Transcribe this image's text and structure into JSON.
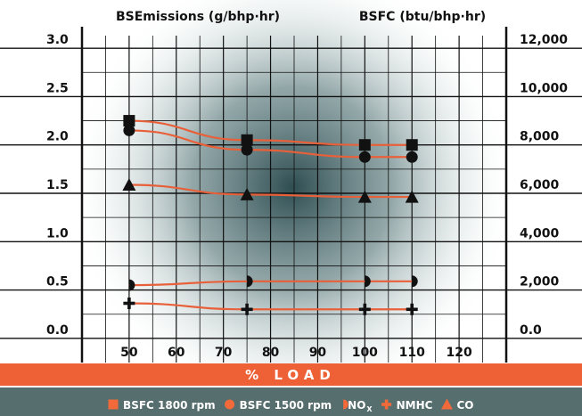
{
  "chart_data": {
    "type": "line",
    "left_axis_title": "BSEmissions (g/bhp·hr)",
    "right_axis_title": "BSFC (btu/bhp·hr)",
    "xlabel": "% LOAD",
    "x_ticks": [
      "50",
      "60",
      "70",
      "80",
      "90",
      "100",
      "110",
      "120"
    ],
    "xlim": [
      40,
      130
    ],
    "y_left_ticks": [
      "0.0",
      "0.5",
      "1.0",
      "1.5",
      "2.0",
      "2.5",
      "3.0"
    ],
    "ylim_left": [
      -0.25,
      3.25
    ],
    "y_right_ticks": [
      "0.0",
      "2,000",
      "4,000",
      "6,000",
      "8,000",
      "10,000",
      "12,000"
    ],
    "ylim_right": [
      -1000,
      13000
    ],
    "grid": true,
    "legend_position": "bottom",
    "x": [
      50,
      75,
      100,
      110
    ],
    "series": [
      {
        "name": "BSFC 1800 rpm",
        "axis": "right",
        "marker": "square",
        "values": [
          9000,
          8200,
          8000,
          8000
        ]
      },
      {
        "name": "BSFC 1500 rpm",
        "axis": "right",
        "marker": "circle",
        "values": [
          8600,
          7800,
          7500,
          7500
        ]
      },
      {
        "name": "NOX",
        "axis": "left",
        "marker": "half-circle",
        "values": [
          0.55,
          0.59,
          0.59,
          0.59
        ]
      },
      {
        "name": "NMHC",
        "axis": "right",
        "marker": "plus",
        "values": [
          1450,
          1200,
          1200,
          1200
        ]
      },
      {
        "name": "CO",
        "axis": "right",
        "marker": "triangle",
        "values": [
          6350,
          5950,
          5850,
          5850
        ]
      }
    ],
    "legend": [
      {
        "label": "BSFC 1800 rpm",
        "marker": "square"
      },
      {
        "label": "BSFC 1500 rpm",
        "marker": "circle"
      },
      {
        "label": "NO",
        "sub": "X",
        "marker": "half-circle"
      },
      {
        "label": "NMHC",
        "marker": "plus"
      },
      {
        "label": "CO",
        "marker": "triangle"
      }
    ],
    "colors": {
      "line": "#e8603a",
      "marker": "#111111",
      "band_orange": "#ee6136",
      "band_teal": "#576e6f",
      "glow": "#2f4e52"
    }
  }
}
